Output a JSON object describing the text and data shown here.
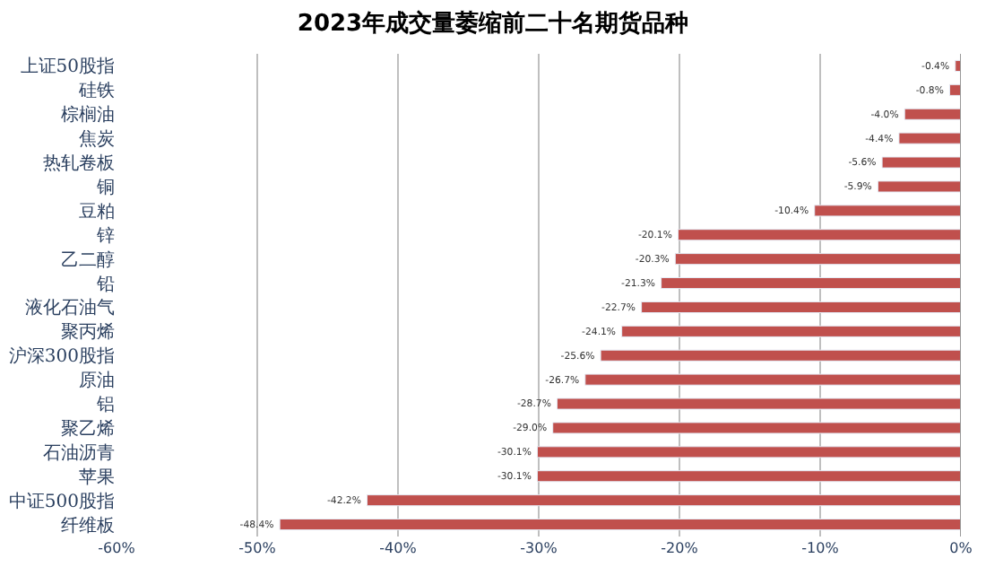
{
  "chart_data": {
    "type": "bar",
    "orientation": "horizontal",
    "title": "2023年成交量萎缩前二十名期货品种",
    "categories": [
      "上证50股指",
      "硅铁",
      "棕榈油",
      "焦炭",
      "热轧卷板",
      "铜",
      "豆粕",
      "锌",
      "乙二醇",
      "铅",
      "液化石油气",
      "聚丙烯",
      "沪深300股指",
      "原油",
      "铝",
      "聚乙烯",
      "石油沥青",
      "苹果",
      "中证500股指",
      "纤维板"
    ],
    "values": [
      -0.4,
      -0.8,
      -4.0,
      -4.4,
      -5.6,
      -5.9,
      -10.4,
      -20.1,
      -20.3,
      -21.3,
      -22.7,
      -24.1,
      -25.6,
      -26.7,
      -28.7,
      -29.0,
      -30.1,
      -30.1,
      -42.2,
      -48.4
    ],
    "value_labels": [
      "-0.4%",
      "-0.8%",
      "-4.0%",
      "-4.4%",
      "-5.6%",
      "-5.9%",
      "-10.4%",
      "-20.1%",
      "-20.3%",
      "-21.3%",
      "-22.7%",
      "-24.1%",
      "-25.6%",
      "-26.7%",
      "-28.7%",
      "-29.0%",
      "-30.1%",
      "-30.1%",
      "-42.2%",
      "-48.4%"
    ],
    "color": "#c0504d",
    "xlim": [
      -60,
      0
    ],
    "xticks": [
      {
        "value": -60,
        "label": "-60%"
      },
      {
        "value": -50,
        "label": "-50%"
      },
      {
        "value": -40,
        "label": "-40%"
      },
      {
        "value": -30,
        "label": "-30%"
      },
      {
        "value": -20,
        "label": "-20%"
      },
      {
        "value": -10,
        "label": "-10%"
      },
      {
        "value": 0,
        "label": "0%"
      }
    ],
    "grid": "x",
    "legend": false
  }
}
